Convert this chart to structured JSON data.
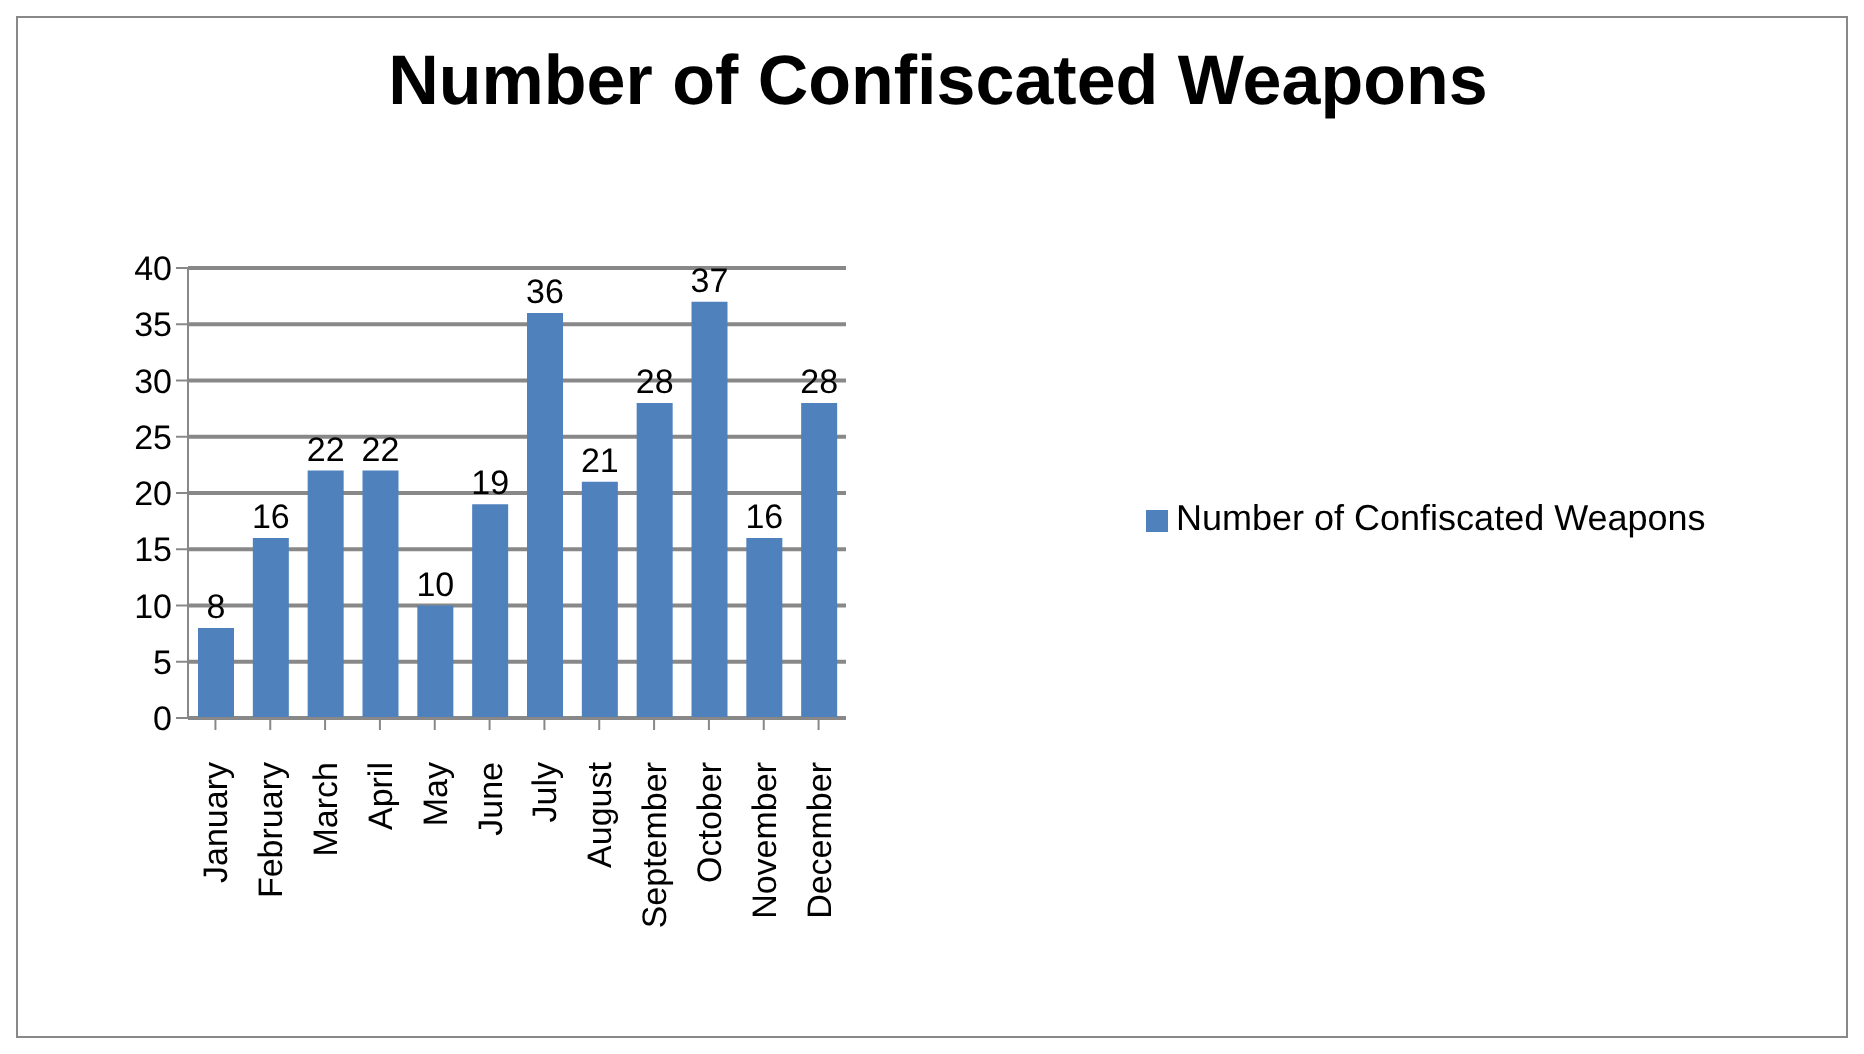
{
  "chart_data": {
    "type": "bar",
    "title": "Number of Confiscated Weapons",
    "categories": [
      "January",
      "February",
      "March",
      "April",
      "May",
      "June",
      "July",
      "August",
      "September",
      "October",
      "November",
      "December"
    ],
    "series": [
      {
        "name": "Number of Confiscated Weapons",
        "color": "#4f81bd",
        "values": [
          8,
          16,
          22,
          22,
          10,
          19,
          36,
          21,
          28,
          37,
          16,
          28
        ]
      }
    ],
    "ylim": [
      0,
      40
    ],
    "yticks": [
      0,
      5,
      10,
      15,
      20,
      25,
      30,
      35,
      40
    ],
    "grid": "y",
    "legend": "right",
    "data_labels": true
  }
}
